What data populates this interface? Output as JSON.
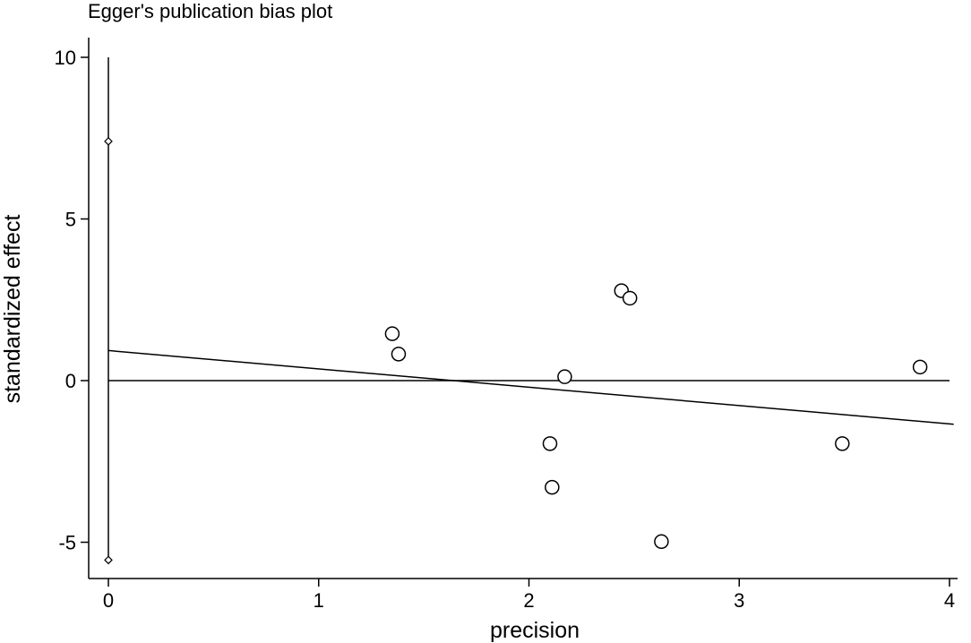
{
  "chart_data": {
    "type": "scatter",
    "title": "Egger's publication bias plot",
    "xlabel": "precision",
    "ylabel": "standardized effect",
    "xlim": [
      -0.08,
      4.05
    ],
    "ylim": [
      -6.2,
      10.6
    ],
    "xticks": [
      0,
      1,
      2,
      3,
      4
    ],
    "yticks": [
      10,
      5,
      0,
      -5
    ],
    "grid": false,
    "legend": "none",
    "points": [
      {
        "x": 1.35,
        "y": 1.45
      },
      {
        "x": 1.38,
        "y": 0.82
      },
      {
        "x": 2.1,
        "y": -1.95
      },
      {
        "x": 2.11,
        "y": -3.3
      },
      {
        "x": 2.17,
        "y": 0.12
      },
      {
        "x": 2.44,
        "y": 2.78
      },
      {
        "x": 2.48,
        "y": 2.55
      },
      {
        "x": 2.63,
        "y": -4.98
      },
      {
        "x": 3.49,
        "y": -1.95
      },
      {
        "x": 3.86,
        "y": 0.42
      }
    ],
    "reference_line_y": 0,
    "reference_line_x_range": [
      0,
      4
    ],
    "regression_line": {
      "x": [
        0,
        4.02
      ],
      "y": [
        0.93,
        -1.35
      ]
    },
    "intercept_ci": {
      "x": 0,
      "low": -5.55,
      "high": 7.4,
      "whisker_top": 10
    }
  }
}
